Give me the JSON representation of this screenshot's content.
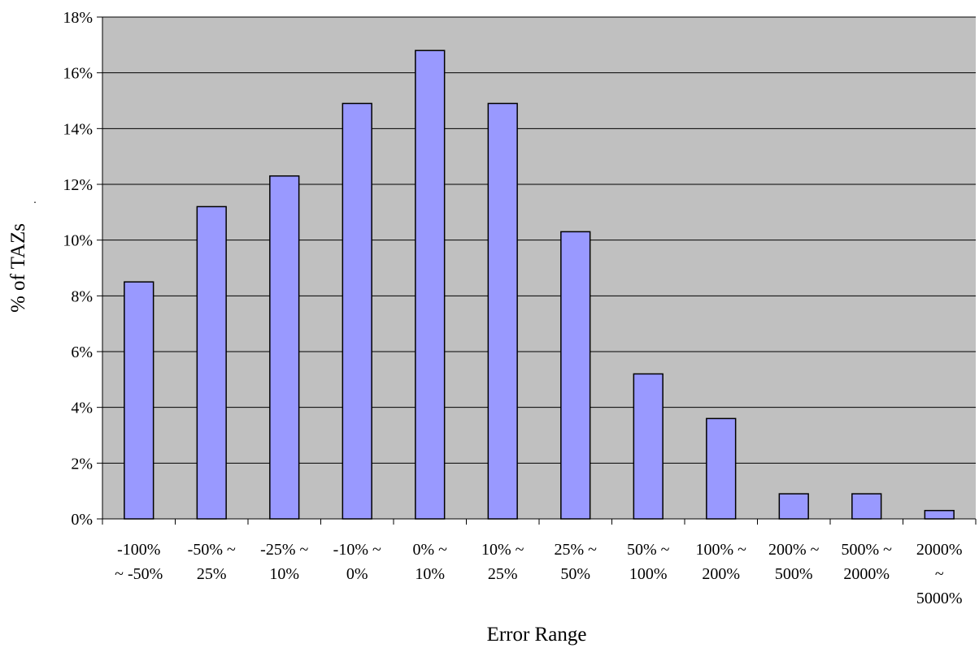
{
  "chart_data": {
    "type": "bar",
    "title": "",
    "xlabel": "Error Range",
    "ylabel": "% of TAZs",
    "ylabel_suffix": ".",
    "categories": [
      [
        "-100%",
        "~ -50%"
      ],
      [
        "-50% ~",
        "25%"
      ],
      [
        "-25% ~",
        "10%"
      ],
      [
        "-10% ~",
        "0%"
      ],
      [
        "0% ~",
        "10%"
      ],
      [
        "10% ~",
        "25%"
      ],
      [
        "25% ~",
        "50%"
      ],
      [
        "50% ~",
        "100%"
      ],
      [
        "100% ~",
        "200%"
      ],
      [
        "200% ~",
        "500%"
      ],
      [
        "500% ~",
        "2000%"
      ],
      [
        "2000%",
        "~",
        "5000%"
      ]
    ],
    "values": [
      8.5,
      11.2,
      12.3,
      14.9,
      16.8,
      14.9,
      10.3,
      5.2,
      3.6,
      0.9,
      0.9,
      0.3
    ],
    "ylim": [
      0,
      18
    ],
    "yticks": [
      0,
      2,
      4,
      6,
      8,
      10,
      12,
      14,
      16,
      18
    ],
    "ytick_labels": [
      "0%",
      "2%",
      "4%",
      "6%",
      "8%",
      "10%",
      "12%",
      "14%",
      "16%",
      "18%"
    ],
    "grid": true,
    "legend": "none",
    "colors": {
      "bar_fill": "#9999ff",
      "bar_stroke": "#000000",
      "plot_background": "#c0c0c0",
      "gridline": "#000000"
    }
  }
}
